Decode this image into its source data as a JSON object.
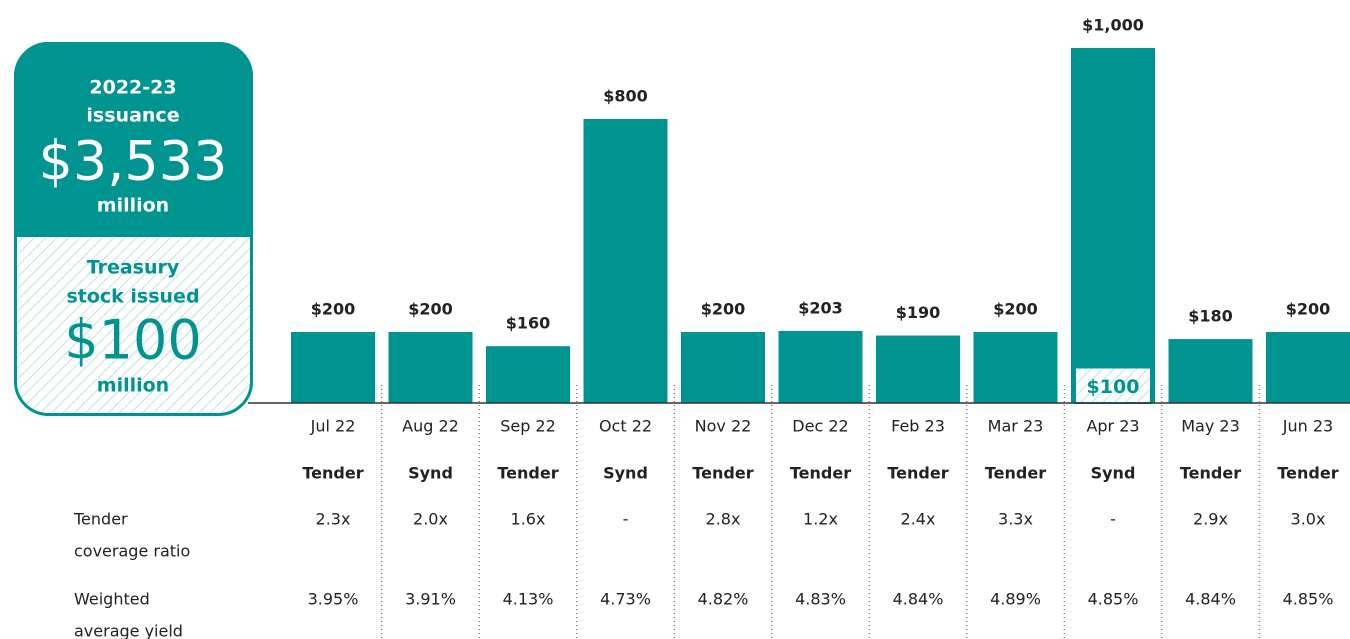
{
  "summary": {
    "issuance_lines": [
      "2022-23",
      "issuance"
    ],
    "issuance_value": "$3,533",
    "issuance_unit": "million",
    "treasury_lines": [
      "Treasury",
      "stock issued"
    ],
    "treasury_value": "$100",
    "treasury_unit": "million"
  },
  "chart_data": {
    "type": "bar",
    "categories": [
      "Jul 22",
      "Aug 22",
      "Sep 22",
      "Oct 22",
      "Nov 22",
      "Dec 22",
      "Feb 23",
      "Mar 23",
      "Apr 23",
      "May 23",
      "Jun 23"
    ],
    "values": [
      200,
      200,
      160,
      800,
      200,
      203,
      190,
      200,
      1000,
      180,
      200
    ],
    "value_labels": [
      "$200",
      "$200",
      "$160",
      "$800",
      "$200",
      "$203",
      "$190",
      "$200",
      "$1,000",
      "$180",
      "$200"
    ],
    "treasury_values": [
      null,
      null,
      null,
      null,
      null,
      null,
      null,
      null,
      100,
      null,
      null
    ],
    "treasury_value_labels": [
      null,
      null,
      null,
      null,
      null,
      null,
      null,
      null,
      "$100",
      null,
      null
    ],
    "color": "#009490",
    "ylim": [
      0,
      1000
    ]
  },
  "table": {
    "methods": [
      "Tender",
      "Synd",
      "Tender",
      "Synd",
      "Tender",
      "Tender",
      "Tender",
      "Tender",
      "Synd",
      "Tender",
      "Tender"
    ],
    "rows": [
      {
        "label_lines": [
          "Tender",
          "coverage ratio"
        ],
        "values": [
          "2.3x",
          "2.0x",
          "1.6x",
          "-",
          "2.8x",
          "1.2x",
          "2.4x",
          "3.3x",
          "-",
          "2.9x",
          "3.0x"
        ]
      },
      {
        "label_lines": [
          "Weighted",
          "average yield"
        ],
        "values": [
          "3.95%",
          "3.91%",
          "4.13%",
          "4.73%",
          "4.82%",
          "4.83%",
          "4.84%",
          "4.89%",
          "4.85%",
          "4.84%",
          "4.85%"
        ]
      }
    ]
  }
}
